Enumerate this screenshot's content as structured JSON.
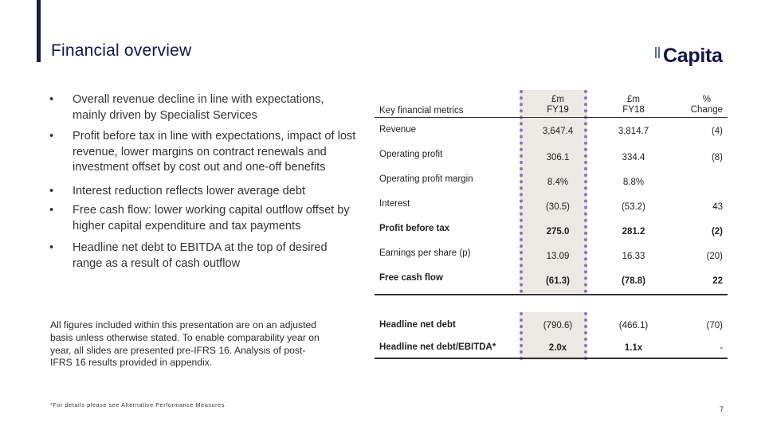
{
  "header": {
    "title": "Financial overview",
    "logo_text": "Capita"
  },
  "bullets": [
    "Overall revenue decline in line with expectations, mainly driven by Specialist Services",
    "Profit before tax in line with expectations, impact of lost revenue, lower margins on contract renewals and investment offset by cost out and one-off benefits",
    "Interest reduction reflects lower average debt",
    "Free cash flow: lower working capital outflow offset by higher capital expenditure and tax payments",
    "Headline net debt to EBITDA at the top of desired range as a result of cash outflow"
  ],
  "bullet_symbol": "•",
  "note": "All figures included within this presentation are on an adjusted basis unless otherwise stated. To enable comparability year on year, all slides are presented pre-IFRS 16. Analysis of post-IFRS 16 results provided in appendix.",
  "footnote": "*For details please see Alternative Performance Measures.",
  "page_number": "7",
  "table": {
    "header": {
      "label": "Key financial metrics",
      "fy19": "£m\nFY19",
      "fy18": "£m\nFY18",
      "change": "%\nChange"
    },
    "rows": [
      {
        "label": "Revenue",
        "fy19": "3,647.4",
        "fy18": "3,814.7",
        "change": "(4)"
      },
      {
        "label": "Operating profit",
        "fy19": "306.1",
        "fy18": "334.4",
        "change": "(8)"
      },
      {
        "label": "Operating profit margin",
        "fy19": "8.4%",
        "fy18": "8.8%",
        "change": ""
      },
      {
        "label": "Interest",
        "fy19": "(30.5)",
        "fy18": "(53.2)",
        "change": "43"
      },
      {
        "label": "Profit before tax",
        "fy19": "275.0",
        "fy18": "281.2",
        "change": "(2)"
      },
      {
        "label": "Earnings per share (p)",
        "fy19": "13.09",
        "fy18": "16.33",
        "change": "(20)"
      },
      {
        "label": "Free cash flow",
        "fy19": "(61.3)",
        "fy18": "(78.8)",
        "change": "22"
      },
      {
        "label": "Headline net debt",
        "fy19": "(790.6)",
        "fy18": "(466.1)",
        "change": "(70)"
      },
      {
        "label": "Headline net debt/EBITDA*",
        "fy19": "2.0x",
        "fy18": "1.1x",
        "change": "-"
      }
    ]
  },
  "colors": {
    "title": "#101548",
    "highlight_border": "#8c73b8",
    "highlight_fill": "#ece8e4"
  }
}
